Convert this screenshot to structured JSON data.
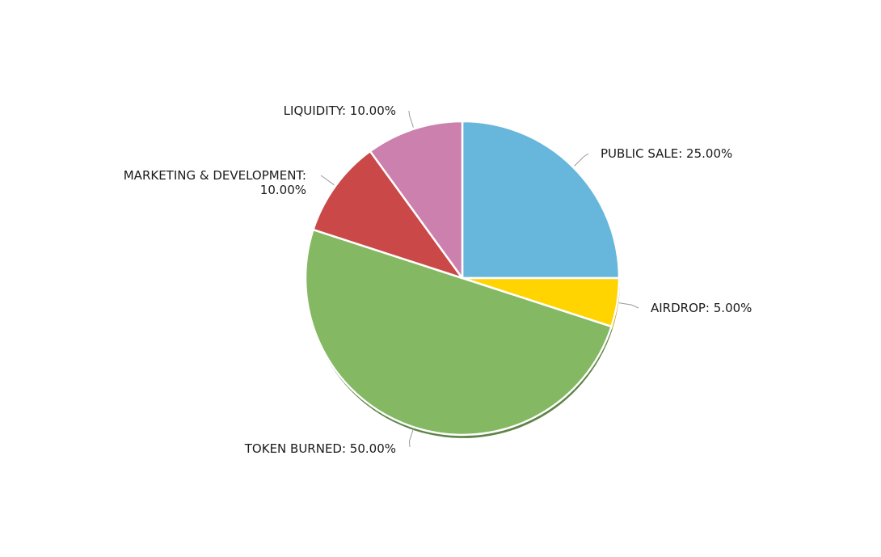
{
  "chart_data": {
    "type": "pie",
    "title": "",
    "slices": [
      {
        "name": "PUBLIC SALE",
        "value": 25.0,
        "label": "PUBLIC SALE: 25.00%",
        "color": "#67b6db"
      },
      {
        "name": "AIRDROP",
        "value": 5.0,
        "label": "AIRDROP: 5.00%",
        "color": "#ffd400"
      },
      {
        "name": "TOKEN BURNED",
        "value": 50.0,
        "label": "TOKEN BURNED: 50.00%",
        "color": "#84b863"
      },
      {
        "name": "MARKETING & DEVELOPMENT",
        "value": 10.0,
        "label_lines": [
          "MARKETING & DEVELOPMENT:",
          "10.00%"
        ],
        "label": "MARKETING & DEVELOPMENT: 10.00%",
        "color": "#cb4848"
      },
      {
        "name": "LIQUIDITY",
        "value": 10.0,
        "label": "LIQUIDITY: 10.00%",
        "color": "#cc80ad"
      }
    ],
    "start_angle": "12 o'clock, clockwise",
    "legend": "none",
    "labels": "outside with leader lines"
  }
}
